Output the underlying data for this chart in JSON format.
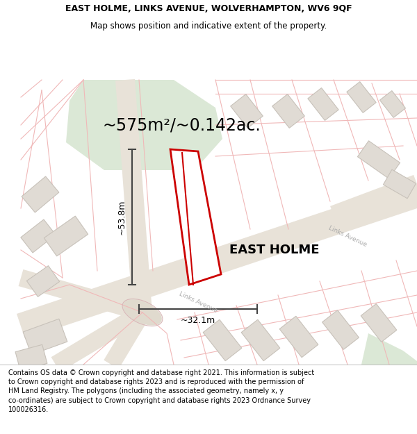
{
  "title_line1": "EAST HOLME, LINKS AVENUE, WOLVERHAMPTON, WV6 9QF",
  "title_line2": "Map shows position and indicative extent of the property.",
  "footer_text": "Contains OS data © Crown copyright and database right 2021. This information is subject\nto Crown copyright and database rights 2023 and is reproduced with the permission of\nHM Land Registry. The polygons (including the associated geometry, namely x, y\nco-ordinates) are subject to Crown copyright and database rights 2023 Ordnance Survey\n100026316.",
  "area_text": "~575m²/~0.142ac.",
  "label_text": "EAST HOLME",
  "dim_vertical": "~53.8m",
  "dim_horizontal": "~32.1m",
  "links_avenue_label1": "Links Avenue",
  "links_avenue_label2": "Links Avenue",
  "map_bg": "#f7f5f2",
  "plot_outline": "#cc0000",
  "plot_fill": "#ffffff",
  "green_fill": "#c8dcc0",
  "building_fill": "#e0dbd4",
  "building_stroke": "#c8c2ba",
  "thin_line_color": "#f0b8b8",
  "road_fill": "#e8e2d8",
  "dim_color": "#444444",
  "title_font_size": 9,
  "footer_font_size": 7,
  "area_font_size": 17,
  "label_font_size": 13
}
